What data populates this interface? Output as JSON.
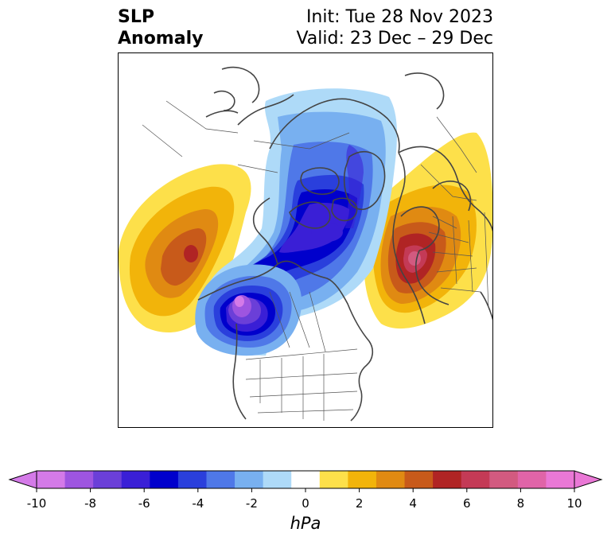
{
  "title": {
    "left_line1": "SLP",
    "left_line2": "Anomaly",
    "right_line1": "Init: Tue 28 Nov 2023",
    "right_line2": "Valid: 23 Dec – 29 Dec"
  },
  "colorbar": {
    "unit": "hPa",
    "ticks": [
      "-10",
      "-8",
      "-6",
      "-4",
      "-2",
      "0",
      "2",
      "4",
      "6",
      "8",
      "10"
    ],
    "levels": [
      -10,
      -9,
      -8,
      -7,
      -6,
      -5,
      -4,
      -3,
      -2,
      -1,
      1,
      2,
      3,
      4,
      5,
      6,
      7,
      8,
      9,
      10
    ],
    "colors": [
      "#d47ae8",
      "#9e55e0",
      "#6b3fd8",
      "#3a1fd6",
      "#0000cc",
      "#2a3fdc",
      "#4f78e8",
      "#78b0f0",
      "#aedaf8",
      "#ffffff",
      "#fde04a",
      "#f2b40a",
      "#e08a12",
      "#c85a1a",
      "#b02424",
      "#c43a56",
      "#d25a80",
      "#e064a8",
      "#ea78d6"
    ]
  },
  "map": {
    "projection": "north-polar-stereographic",
    "features": [
      "SLP anomaly shading",
      "coastlines",
      "country borders",
      "US state borders",
      "Canadian provinces"
    ],
    "anomalies": [
      {
        "name": "North Pacific / Aleutian ridge",
        "type": "positive",
        "peak_hPa": 7
      },
      {
        "name": "Western Europe / Scandinavia high",
        "type": "positive",
        "peak_hPa": 8
      },
      {
        "name": "Gulf of Alaska / NW Canada low",
        "type": "negative",
        "peak_hPa": -10
      },
      {
        "name": "Central Arctic / Siberia low",
        "type": "negative",
        "peak_hPa": -6
      }
    ]
  }
}
